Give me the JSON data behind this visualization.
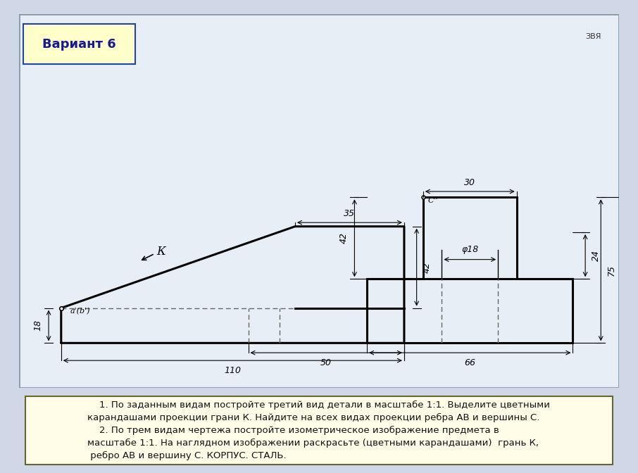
{
  "bg_outer": "#d0d8e8",
  "bg_inner": "#e8eef5",
  "bg_drawing": "#f0f4f8",
  "line_color": "#000000",
  "dashed_color": "#555555",
  "title": "Вариант 6",
  "title_fontsize": 13,
  "text_color": "#000040",
  "dim_color": "#333333",
  "footer_bg": "#fffde8",
  "footer_text": "    1. По заданным видам постройте третий вид детали в масштабе 1:1. Выделите цветными\nкарандашами проекции грани К. Найдите на всех видах проекции ребра АВ и вершины С.\n    2. По трем видам чертежа постройте изометрическое изображение предмета в\nмасштабе 1:1. На наглядном изображении раскрасьте (цветными карандашами)  грань К,\n ребро АВ и вершину С. КОРПУС. СТАЛЬ.",
  "watermark": "ЗВЯ"
}
